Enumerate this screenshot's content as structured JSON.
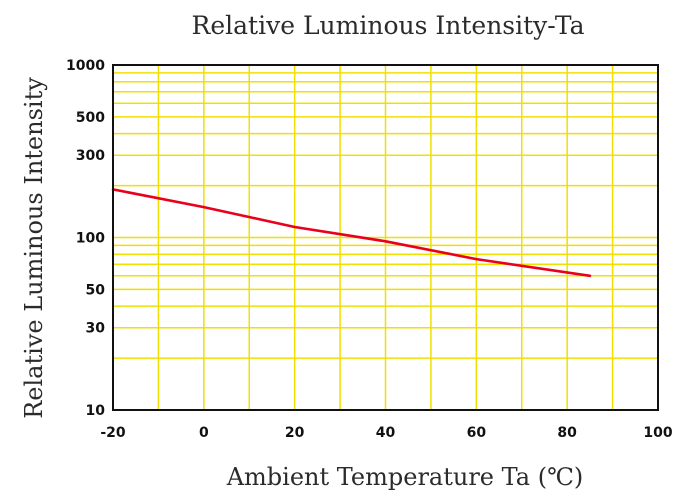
{
  "chart_data": {
    "type": "line",
    "title": "Relative Luminous Intensity-Ta",
    "xlabel": "Ambient Temperature Ta (℃)",
    "ylabel": "Relative Luminous Intensity",
    "x_scale": "linear",
    "y_scale": "log",
    "xlim": [
      -20,
      100
    ],
    "ylim": [
      10,
      1000
    ],
    "x_ticks": [
      -20,
      0,
      20,
      40,
      60,
      80,
      100
    ],
    "x_tick_labels": [
      "-20",
      "0",
      "20",
      "40",
      "60",
      "80",
      "100"
    ],
    "y_ticks": [
      10,
      30,
      50,
      100,
      300,
      500,
      1000
    ],
    "y_tick_labels": [
      "10",
      "30",
      "50",
      "100",
      "300",
      "500",
      "1000"
    ],
    "grid": true,
    "series": [
      {
        "x": [
          -20,
          0,
          20,
          40,
          60,
          85
        ],
        "y": [
          190,
          150,
          115,
          95,
          75,
          60
        ],
        "color": "#e8001c"
      }
    ],
    "colors": {
      "grid": "#f0e000",
      "frame": "#111111",
      "line": "#e8001c"
    }
  }
}
